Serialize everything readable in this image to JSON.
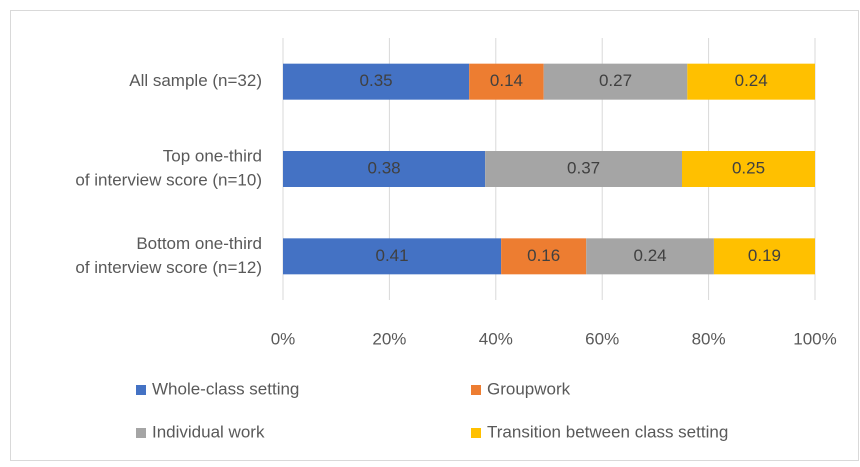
{
  "chart_data": {
    "type": "stacked_bar_horizontal",
    "categories": [
      [
        "All sample (n=32)"
      ],
      [
        "Top one-third",
        "of interview score (n=10)"
      ],
      [
        "Bottom one-third",
        "of interview score (n=12)"
      ]
    ],
    "series": [
      {
        "name": "Whole-class setting",
        "color": "#4472c4",
        "values": [
          35,
          38,
          41
        ],
        "value_labels": [
          "0.35",
          "0.38",
          "0.41"
        ]
      },
      {
        "name": "Groupwork",
        "color": "#ed7d31",
        "values": [
          14,
          null,
          16
        ],
        "value_labels": [
          "0.14",
          null,
          "0.16"
        ]
      },
      {
        "name": "Individual work",
        "color": "#a5a5a5",
        "values": [
          27,
          37,
          24
        ],
        "value_labels": [
          "0.27",
          "0.37",
          "0.24"
        ]
      },
      {
        "name": "Transition between class setting",
        "color": "#ffc000",
        "values": [
          24,
          25,
          19
        ],
        "value_labels": [
          "0.24",
          "0.25",
          "0.19"
        ]
      }
    ],
    "xlim": [
      0,
      100
    ],
    "xticks": [
      {
        "value": 0,
        "label": "0%"
      },
      {
        "value": 20,
        "label": "20%"
      },
      {
        "value": 40,
        "label": "40%"
      },
      {
        "value": 60,
        "label": "60%"
      },
      {
        "value": 80,
        "label": "80%"
      },
      {
        "value": 100,
        "label": "100%"
      }
    ],
    "grid": true,
    "legend": "bottom"
  }
}
